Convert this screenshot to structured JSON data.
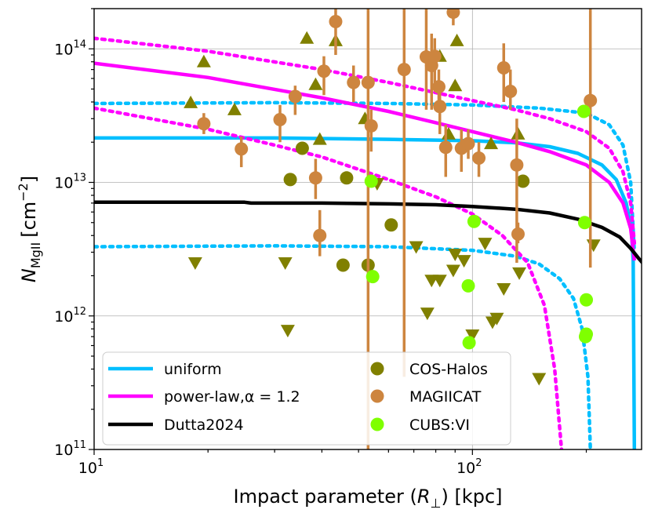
{
  "chart_data": {
    "type": "scatter",
    "xscale": "log",
    "yscale": "log",
    "xlim": [
      10,
      280
    ],
    "ylim": [
      100000000000.0,
      200000000000000.0
    ],
    "xlabel_main": "Impact parameter (",
    "xlabel_sym": "R",
    "xlabel_sub": "⊥",
    "xlabel_tail": ") [kpc]",
    "ylabel_sym": "N",
    "ylabel_sub": "MgII",
    "ylabel_unit": "[cm",
    "ylabel_exp": "−2",
    "ylabel_close": "]",
    "grid": true,
    "legend_position": "lower-left",
    "xticks": [
      {
        "value": 10,
        "base": "10",
        "exp": "1"
      },
      {
        "value": 100,
        "base": "10",
        "exp": "2"
      }
    ],
    "yticks": [
      {
        "value": 100000000000.0,
        "base": "10",
        "exp": "11"
      },
      {
        "value": 1000000000000.0,
        "base": "10",
        "exp": "12"
      },
      {
        "value": 10000000000000.0,
        "base": "10",
        "exp": "13"
      },
      {
        "value": 100000000000000.0,
        "base": "10",
        "exp": "14"
      }
    ],
    "series": [
      {
        "name": "uniform",
        "kind": "line",
        "color": "#00bfff",
        "style": "solid",
        "x": [
          10,
          30,
          60,
          100,
          130,
          160,
          190,
          220,
          240,
          255,
          263,
          266,
          268
        ],
        "y": [
          21500000000000.0,
          21500000000000.0,
          21000000000000.0,
          20500000000000.0,
          19800000000000.0,
          18500000000000.0,
          16500000000000.0,
          13500000000000.0,
          10500000000000.0,
          7000000000000.0,
          4500000000000.0,
          2600000000000.0,
          100000000000.0
        ]
      },
      {
        "name": "uniform upper",
        "kind": "line",
        "color": "#00bfff",
        "style": "dotted",
        "legend": false,
        "x": [
          10,
          30,
          60,
          100,
          150,
          200,
          230,
          250,
          262,
          268
        ],
        "y": [
          39000000000000.0,
          39500000000000.0,
          39000000000000.0,
          38000000000000.0,
          36000000000000.0,
          33000000000000.0,
          27000000000000.0,
          19000000000000.0,
          10000000000000.0,
          3000000000000.0
        ]
      },
      {
        "name": "uniform lower",
        "kind": "line",
        "color": "#00bfff",
        "style": "dotted",
        "legend": false,
        "x": [
          10,
          30,
          60,
          100,
          130,
          150,
          170,
          185,
          195,
          202,
          205
        ],
        "y": [
          3300000000000.0,
          3350000000000.0,
          3300000000000.0,
          3100000000000.0,
          2800000000000.0,
          2450000000000.0,
          1900000000000.0,
          1350000000000.0,
          800000000000.0,
          350000000000.0,
          100000000000.0
        ]
      },
      {
        "name": "power-law,α = 1.2",
        "kind": "line",
        "color": "#ff00ff",
        "style": "solid",
        "x": [
          10,
          20,
          40,
          60,
          80,
          100,
          130,
          160,
          200,
          230,
          250,
          262,
          268
        ],
        "y": [
          78000000000000.0,
          61000000000000.0,
          43000000000000.0,
          34000000000000.0,
          28000000000000.0,
          24000000000000.0,
          20000000000000.0,
          17000000000000.0,
          13500000000000.0,
          10000000000000.0,
          7000000000000.0,
          4500000000000.0,
          2600000000000.0
        ]
      },
      {
        "name": "power-law upper",
        "kind": "line",
        "color": "#ff00ff",
        "style": "dotted",
        "legend": false,
        "x": [
          10,
          20,
          40,
          60,
          80,
          100,
          130,
          160,
          200,
          230,
          250,
          262,
          268
        ],
        "y": [
          120000000000000.0,
          96000000000000.0,
          70000000000000.0,
          56000000000000.0,
          47000000000000.0,
          41000000000000.0,
          35000000000000.0,
          30000000000000.0,
          24000000000000.0,
          18000000000000.0,
          12000000000000.0,
          7000000000000.0,
          3500000000000.0
        ]
      },
      {
        "name": "power-law lower",
        "kind": "line",
        "color": "#ff00ff",
        "style": "dotted",
        "legend": false,
        "x": [
          10,
          20,
          30,
          40,
          60,
          80,
          100,
          120,
          140,
          155,
          165,
          172
        ],
        "y": [
          36000000000000.0,
          25000000000000.0,
          19000000000000.0,
          15500000000000.0,
          10500000000000.0,
          7800000000000.0,
          5800000000000.0,
          4000000000000.0,
          2500000000000.0,
          1200000000000.0,
          400000000000.0,
          100000000000.0
        ]
      },
      {
        "name": "Dutta2024",
        "kind": "line",
        "color": "#000000",
        "style": "solid",
        "x": [
          10,
          25,
          26,
          40,
          60,
          80,
          100,
          130,
          160,
          190,
          220,
          245,
          262,
          275,
          285
        ],
        "y": [
          7100000000000.0,
          7100000000000.0,
          7000000000000.0,
          7000000000000.0,
          6900000000000.0,
          6800000000000.0,
          6600000000000.0,
          6300000000000.0,
          5900000000000.0,
          5300000000000.0,
          4600000000000.0,
          3900000000000.0,
          3200000000000.0,
          2700000000000.0,
          2400000000000.0
        ]
      },
      {
        "name": "COS-Halos",
        "kind": "points",
        "color": "#808000",
        "circles": [
          [
            35.5,
            18000000000000.0
          ],
          [
            33,
            10500000000000.0
          ],
          [
            46.5,
            10800000000000.0
          ],
          [
            45.5,
            2400000000000.0
          ],
          [
            53,
            2400000000000.0
          ],
          [
            61,
            4800000000000.0
          ],
          [
            136,
            10200000000000.0
          ]
        ],
        "triangles_up": [
          [
            18,
            39500000000000.0
          ],
          [
            19.5,
            80000000000000.0
          ],
          [
            23.5,
            35000000000000.0
          ],
          [
            36.5,
            120000000000000.0
          ],
          [
            38.5,
            54000000000000.0
          ],
          [
            39.5,
            21000000000000.0
          ],
          [
            43.5,
            115000000000000.0
          ],
          [
            52,
            30000000000000.0
          ],
          [
            82,
            88000000000000.0
          ],
          [
            86.5,
            23000000000000.0
          ],
          [
            90,
            53000000000000.0
          ],
          [
            91,
            115000000000000.0
          ],
          [
            112,
            19500000000000.0
          ],
          [
            132,
            23000000000000.0
          ]
        ],
        "triangles_down": [
          [
            18.5,
            2500000000000.0
          ],
          [
            32,
            2500000000000.0
          ],
          [
            32.5,
            780000000000.0
          ],
          [
            56,
            9800000000000.0
          ],
          [
            71,
            3300000000000.0
          ],
          [
            76,
            1050000000000.0
          ],
          [
            78,
            1850000000000.0
          ],
          [
            82,
            1850000000000.0
          ],
          [
            89,
            2200000000000.0
          ],
          [
            90,
            2900000000000.0
          ],
          [
            95,
            2600000000000.0
          ],
          [
            100,
            720000000000.0
          ],
          [
            108,
            3500000000000.0
          ],
          [
            113,
            900000000000.0
          ],
          [
            116,
            960000000000.0
          ],
          [
            121,
            1600000000000.0
          ],
          [
            133,
            2100000000000.0
          ],
          [
            150,
            340000000000.0
          ],
          [
            209,
            3400000000000.0
          ]
        ]
      },
      {
        "name": "MAGIICAT",
        "kind": "points",
        "color": "#cd853f",
        "points": [
          [
            19.5,
            27500000000000.0,
            23000000000000.0,
            33000000000000.0
          ],
          [
            24.5,
            17800000000000.0,
            13000000000000.0,
            22000000000000.0
          ],
          [
            31,
            29500000000000.0,
            20000000000000.0,
            38000000000000.0
          ],
          [
            34,
            44000000000000.0,
            32000000000000.0,
            53000000000000.0
          ],
          [
            38.5,
            10800000000000.0,
            7500000000000.0,
            15000000000000.0
          ],
          [
            39.5,
            4000000000000.0,
            2800000000000.0,
            6200000000000.0
          ],
          [
            40.5,
            68000000000000.0,
            45000000000000.0,
            88000000000000.0
          ],
          [
            43.5,
            160000000000000.0,
            90000000000000.0,
            200000000000000.0
          ],
          [
            48.5,
            56000000000000.0,
            40000000000000.0,
            75000000000000.0
          ],
          [
            53,
            56000000000000.0,
            100000000000.0,
            200000000000000.0
          ],
          [
            54,
            26500000000000.0,
            17000000000000.0,
            35000000000000.0
          ],
          [
            66,
            70000000000000.0,
            350000000000.0,
            200000000000000.0
          ],
          [
            75.5,
            87000000000000.0,
            35000000000000.0,
            200000000000000.0
          ],
          [
            78,
            75000000000000.0,
            35000000000000.0,
            130000000000000.0
          ],
          [
            79.5,
            88000000000000.0,
            50000000000000.0,
            120000000000000.0
          ],
          [
            81.5,
            52000000000000.0,
            35000000000000.0,
            70000000000000.0
          ],
          [
            82,
            37000000000000.0,
            23000000000000.0,
            50000000000000.0
          ],
          [
            85,
            18300000000000.0,
            11000000000000.0,
            27000000000000.0
          ],
          [
            89,
            188000000000000.0,
            150000000000000.0,
            200000000000000.0
          ],
          [
            93.5,
            18000000000000.0,
            12000000000000.0,
            25000000000000.0
          ],
          [
            97.5,
            19500000000000.0,
            15000000000000.0,
            25000000000000.0
          ],
          [
            104,
            15200000000000.0,
            11000000000000.0,
            20000000000000.0
          ],
          [
            121,
            72000000000000.0,
            40000000000000.0,
            110000000000000.0
          ],
          [
            126,
            48000000000000.0,
            35000000000000.0,
            70000000000000.0
          ],
          [
            131,
            13500000000000.0,
            2500000000000.0,
            30000000000000.0
          ],
          [
            132,
            4100000000000.0,
            3500000000000.0,
            5000000000000.0
          ],
          [
            205,
            41000000000000.0,
            2300000000000.0,
            200000000000000.0
          ]
        ]
      },
      {
        "name": "CUBS:VI",
        "kind": "points",
        "color": "#7fff00",
        "circles": [
          [
            54,
            10200000000000.0
          ],
          [
            54.5,
            1970000000000.0
          ],
          [
            97.5,
            1680000000000.0
          ],
          [
            98,
            630000000000.0
          ],
          [
            101,
            5100000000000.0
          ],
          [
            197,
            34000000000000.0
          ],
          [
            198,
            5000000000000.0
          ],
          [
            200,
            1320000000000.0
          ],
          [
            200,
            730000000000.0
          ],
          [
            199,
            700000000000.0
          ]
        ]
      }
    ],
    "legend": [
      {
        "label": "uniform",
        "color": "#00bfff",
        "kind": "line"
      },
      {
        "label": "power-law,α = 1.2",
        "color": "#ff00ff",
        "kind": "line"
      },
      {
        "label": "Dutta2024",
        "color": "#000000",
        "kind": "line"
      },
      {
        "label": "COS-Halos",
        "color": "#808000",
        "kind": "marker"
      },
      {
        "label": "MAGIICAT",
        "color": "#cd853f",
        "kind": "marker"
      },
      {
        "label": "CUBS:VI",
        "color": "#7fff00",
        "kind": "marker"
      }
    ]
  }
}
